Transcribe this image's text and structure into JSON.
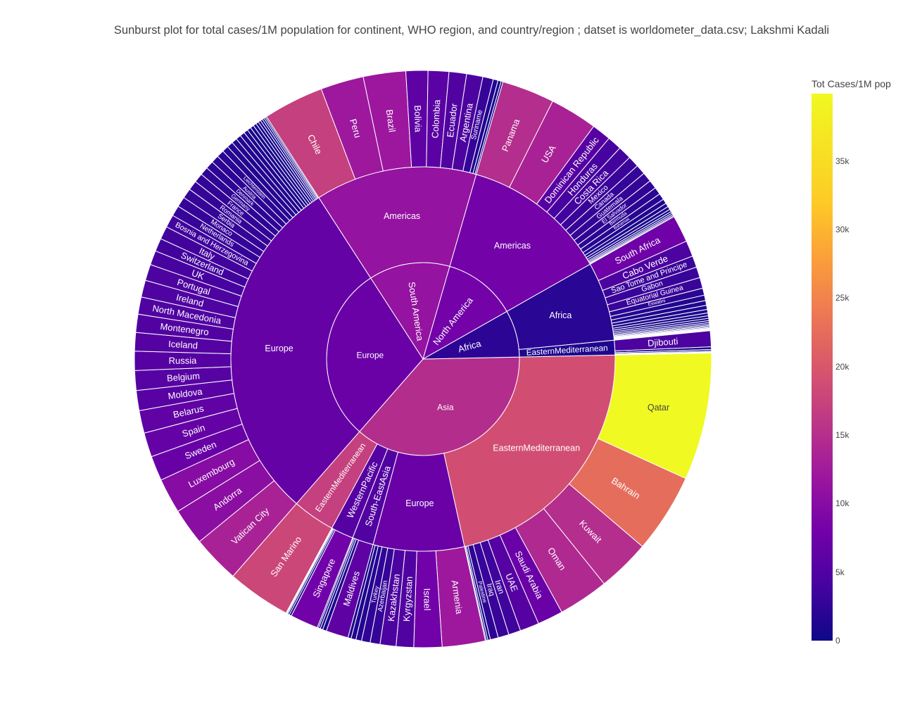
{
  "title": "Sunburst plot for total cases/1M population for continent, WHO region, and country/region ; datset is worldometer_data.csv; Lakshmi Kadali",
  "colorbar": {
    "title": "Tot Cases/1M pop",
    "ticks": [
      "0",
      "5k",
      "10k",
      "15k",
      "20k",
      "25k",
      "30k",
      "35k"
    ],
    "tick_values": [
      0,
      5000,
      10000,
      15000,
      20000,
      25000,
      30000,
      35000
    ],
    "max": 39922,
    "colorscale": [
      "#0d0887",
      "#46039f",
      "#7201a8",
      "#9c179e",
      "#bd3786",
      "#d8576b",
      "#ed7953",
      "#fb9f3a",
      "#fdca26",
      "#f0f921"
    ]
  },
  "chart_data": {
    "type": "sunburst",
    "value_note": "Tot Cases/1M pop",
    "children": [
      {
        "name": "Asia",
        "value": 16400,
        "children": [
          {
            "name": "EasternMediterranean",
            "value": 21000,
            "children": [
              {
                "name": "Qatar",
                "value": 39922
              },
              {
                "name": "Bahrain",
                "value": 25000
              },
              {
                "name": "Kuwait",
                "value": 16500
              },
              {
                "name": "Oman",
                "value": 15800
              },
              {
                "name": "Saudi Arabia",
                "value": 8000
              },
              {
                "name": "UAE",
                "value": 6000
              },
              {
                "name": "Iran",
                "value": 3800
              },
              {
                "name": "Iraq",
                "value": 3400
              },
              {
                "name": "Palestine",
                "value": 2500
              },
              {
                "name": "",
                "value": 800
              },
              {
                "name": "",
                "value": 500
              },
              {
                "name": "",
                "value": 300
              }
            ]
          },
          {
            "name": "Europe",
            "value": 8000,
            "children": [
              {
                "name": "Armenia",
                "value": 13500
              },
              {
                "name": "Israel",
                "value": 8800
              },
              {
                "name": "Kyrgyzstan",
                "value": 5500
              },
              {
                "name": "Kazakhstan",
                "value": 5000
              },
              {
                "name": "Azerbaijan",
                "value": 3100
              },
              {
                "name": "Turkey",
                "value": 2700
              },
              {
                "name": "",
                "value": 1800
              },
              {
                "name": "",
                "value": 1500
              },
              {
                "name": "",
                "value": 1000
              }
            ]
          },
          {
            "name": "South-EastAsia",
            "value": 5500,
            "children": [
              {
                "name": "Maldives",
                "value": 7000
              },
              {
                "name": "",
                "value": 1200
              },
              {
                "name": "",
                "value": 800
              },
              {
                "name": "",
                "value": 600
              },
              {
                "name": "",
                "value": 400
              }
            ]
          },
          {
            "name": "WesternPacific",
            "value": 6000,
            "children": [
              {
                "name": "Singapore",
                "value": 8800
              },
              {
                "name": "",
                "value": 700
              },
              {
                "name": "",
                "value": 500
              },
              {
                "name": "",
                "value": 300
              },
              {
                "name": "",
                "value": 200
              },
              {
                "name": "",
                "value": 150
              }
            ]
          },
          {
            "name": "EasternMediterranean",
            "value": 19000,
            "children": [
              {
                "name": "San Marino",
                "value": 20000
              }
            ]
          }
        ]
      },
      {
        "name": "Europe",
        "value": 8100,
        "children": [
          {
            "name": "Europe",
            "value": 7500,
            "children": [
              {
                "name": "Vatican City",
                "value": 14900
              },
              {
                "name": "Andorra",
                "value": 11500
              },
              {
                "name": "Luxembourg",
                "value": 11000
              },
              {
                "name": "Sweden",
                "value": 7800
              },
              {
                "name": "Spain",
                "value": 7600
              },
              {
                "name": "Belarus",
                "value": 7100
              },
              {
                "name": "Moldova",
                "value": 6300
              },
              {
                "name": "Belgium",
                "value": 6200
              },
              {
                "name": "Russia",
                "value": 6000
              },
              {
                "name": "Iceland",
                "value": 5800
              },
              {
                "name": "Montenegro",
                "value": 5700
              },
              {
                "name": "North Macedonia",
                "value": 5400
              },
              {
                "name": "Ireland",
                "value": 5300
              },
              {
                "name": "Portugal",
                "value": 5100
              },
              {
                "name": "UK",
                "value": 4500
              },
              {
                "name": "Switzerland",
                "value": 4100
              },
              {
                "name": "Italy",
                "value": 4100
              },
              {
                "name": "Bosnia and Herzegovina",
                "value": 4000
              },
              {
                "name": "Netherlands",
                "value": 3300
              },
              {
                "name": "Monaco",
                "value": 3200
              },
              {
                "name": "Serbia",
                "value": 3100
              },
              {
                "name": "Romania",
                "value": 3000
              },
              {
                "name": "France",
                "value": 2900
              },
              {
                "name": "Germany",
                "value": 2600
              },
              {
                "name": "Denmark",
                "value": 2500
              },
              {
                "name": "Austria",
                "value": 2400
              },
              {
                "name": "Liechtenstein",
                "value": 2300
              },
              {
                "name": "",
                "value": 2000
              },
              {
                "name": "",
                "value": 1900
              },
              {
                "name": "",
                "value": 1700
              },
              {
                "name": "",
                "value": 1600
              },
              {
                "name": "",
                "value": 1500
              },
              {
                "name": "",
                "value": 1300
              },
              {
                "name": "",
                "value": 1200
              },
              {
                "name": "",
                "value": 1100
              },
              {
                "name": "",
                "value": 1000
              },
              {
                "name": "",
                "value": 900
              },
              {
                "name": "",
                "value": 800
              },
              {
                "name": "",
                "value": 700
              },
              {
                "name": "",
                "value": 600
              },
              {
                "name": "",
                "value": 500
              },
              {
                "name": "",
                "value": 400
              }
            ]
          }
        ]
      },
      {
        "name": "South America",
        "value": 12500,
        "children": [
          {
            "name": "Americas",
            "value": 12500,
            "children": [
              {
                "name": "Chile",
                "value": 19000
              },
              {
                "name": "Peru",
                "value": 13500
              },
              {
                "name": "Brazil",
                "value": 13300
              },
              {
                "name": "Bolivia",
                "value": 6900
              },
              {
                "name": "Colombia",
                "value": 6500
              },
              {
                "name": "Ecuador",
                "value": 5500
              },
              {
                "name": "Argentina",
                "value": 5100
              },
              {
                "name": "Suriname",
                "value": 3300
              },
              {
                "name": "",
                "value": 1500
              },
              {
                "name": "",
                "value": 1000
              },
              {
                "name": "",
                "value": 600
              }
            ]
          }
        ]
      },
      {
        "name": "North America",
        "value": 9000,
        "children": [
          {
            "name": "Americas",
            "value": 9000,
            "children": [
              {
                "name": "Panama",
                "value": 16500
              },
              {
                "name": "USA",
                "value": 14900
              },
              {
                "name": "Dominican Republic",
                "value": 6000
              },
              {
                "name": "Honduras",
                "value": 4500
              },
              {
                "name": "Costa Rica",
                "value": 4200
              },
              {
                "name": "Mexico",
                "value": 3500
              },
              {
                "name": "Canada",
                "value": 3100
              },
              {
                "name": "Guatemala",
                "value": 3000
              },
              {
                "name": "El Salvador",
                "value": 2700
              },
              {
                "name": "Bermuda",
                "value": 2300
              },
              {
                "name": "Bahamas",
                "value": 2000
              },
              {
                "name": "",
                "value": 1500
              },
              {
                "name": "",
                "value": 1200
              },
              {
                "name": "",
                "value": 1000
              },
              {
                "name": "",
                "value": 800
              },
              {
                "name": "",
                "value": 600
              },
              {
                "name": "",
                "value": 500
              },
              {
                "name": "",
                "value": 400
              },
              {
                "name": "",
                "value": 300
              }
            ]
          }
        ]
      },
      {
        "name": "Africa",
        "value": 2500,
        "children": [
          {
            "name": "Africa",
            "value": 2200,
            "children": [
              {
                "name": "South Africa",
                "value": 8500
              },
              {
                "name": "Cabo Verde",
                "value": 5000
              },
              {
                "name": "Sao Tome and Principe",
                "value": 3600
              },
              {
                "name": "Gabon",
                "value": 3400
              },
              {
                "name": "Equatorial Guinea",
                "value": 3400
              },
              {
                "name": "Eswatini",
                "value": 2200
              },
              {
                "name": "",
                "value": 1700
              },
              {
                "name": "",
                "value": 1500
              },
              {
                "name": "",
                "value": 1300
              },
              {
                "name": "",
                "value": 1100
              },
              {
                "name": "",
                "value": 900
              },
              {
                "name": "",
                "value": 800
              },
              {
                "name": "",
                "value": 700
              },
              {
                "name": "",
                "value": 600
              },
              {
                "name": "",
                "value": 500
              },
              {
                "name": "",
                "value": 400
              },
              {
                "name": "",
                "value": 350
              },
              {
                "name": "",
                "value": 300
              },
              {
                "name": "",
                "value": 250
              },
              {
                "name": "",
                "value": 200
              },
              {
                "name": "",
                "value": 150
              },
              {
                "name": "",
                "value": 120
              },
              {
                "name": "",
                "value": 100
              },
              {
                "name": "",
                "value": 80
              },
              {
                "name": "",
                "value": 60
              },
              {
                "name": "",
                "value": 40
              }
            ]
          },
          {
            "name": "EasternMediterranean",
            "value": 1300,
            "children": [
              {
                "name": "Djibouti",
                "value": 5000
              },
              {
                "name": "",
                "value": 800
              },
              {
                "name": "",
                "value": 500
              },
              {
                "name": "",
                "value": 300
              },
              {
                "name": "",
                "value": 200
              },
              {
                "name": "",
                "value": 100
              }
            ]
          }
        ]
      }
    ]
  }
}
